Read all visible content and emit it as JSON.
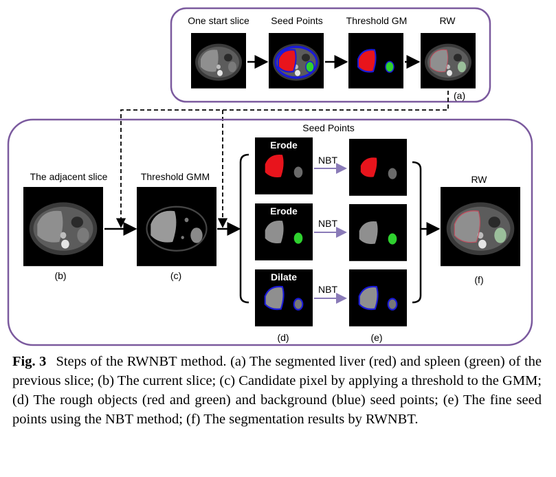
{
  "top_panel": {
    "labels": {
      "start": "One start slice",
      "seeds": "Seed Points",
      "thresh": "Threshold GM",
      "rw": "RW"
    },
    "tag": "(a)"
  },
  "bottom_panel": {
    "seed_points_title": "Seed Points",
    "adjacent": "The adjacent slice",
    "gmm": "Threshold GMM",
    "rw": "RW",
    "ops": {
      "erode1": "Erode",
      "erode2": "Erode",
      "dilate": "Dilate"
    },
    "nbt": "NBT",
    "tags": {
      "b": "(b)",
      "c": "(c)",
      "d": "(d)",
      "e": "(e)",
      "f": "(f)"
    }
  },
  "colors": {
    "panel_border": "#7b5a9e",
    "liver_red": "#e8141c",
    "spleen_green": "#2fd12f",
    "seed_blue": "#1a1ad8",
    "nbt_arrow": "#8a7bb8"
  },
  "caption": {
    "fig_label": "Fig. 3",
    "text": "Steps of the RWNBT method. (a) The segmented liver (red) and spleen (green) of the previous slice; (b) The current slice; (c) Candidate pixel by applying a threshold to the GMM; (d) The rough objects (red and green) and background (blue) seed points; (e) The fine seed points using the NBT method; (f) The segmentation results by RWNBT."
  }
}
